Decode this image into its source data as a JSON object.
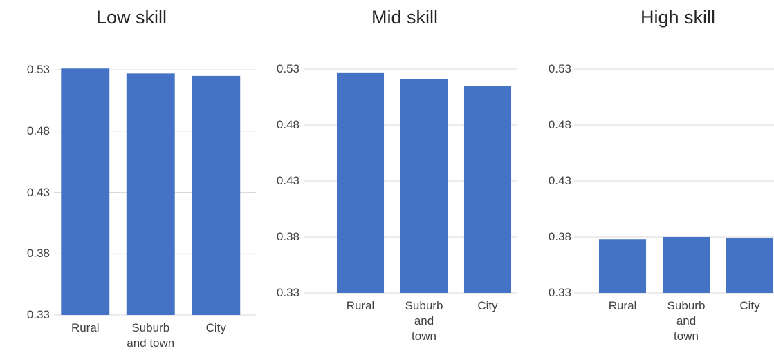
{
  "chart_data": [
    {
      "type": "bar",
      "title": "Low skill",
      "categories": [
        "Rural",
        "Suburb and town",
        "City"
      ],
      "values": [
        0.531,
        0.527,
        0.525
      ],
      "color": "#4472c4",
      "ylim": [
        0.33,
        0.53
      ],
      "yticks": [
        0.33,
        0.38,
        0.43,
        0.48,
        0.53
      ],
      "grid": true
    },
    {
      "type": "bar",
      "title": "Mid skill",
      "categories": [
        "Rural",
        "Suburb and town",
        "City"
      ],
      "values": [
        0.527,
        0.521,
        0.515
      ],
      "color": "#4472c4",
      "ylim": [
        0.33,
        0.53
      ],
      "yticks": [
        0.33,
        0.38,
        0.43,
        0.48,
        0.53
      ],
      "grid": true
    },
    {
      "type": "bar",
      "title": "High skill",
      "categories": [
        "Rural",
        "Suburb and town",
        "City"
      ],
      "values": [
        0.378,
        0.38,
        0.379
      ],
      "color": "#4472c4",
      "ylim": [
        0.33,
        0.53
      ],
      "yticks": [
        0.33,
        0.38,
        0.43,
        0.48,
        0.53
      ],
      "grid": true
    }
  ]
}
